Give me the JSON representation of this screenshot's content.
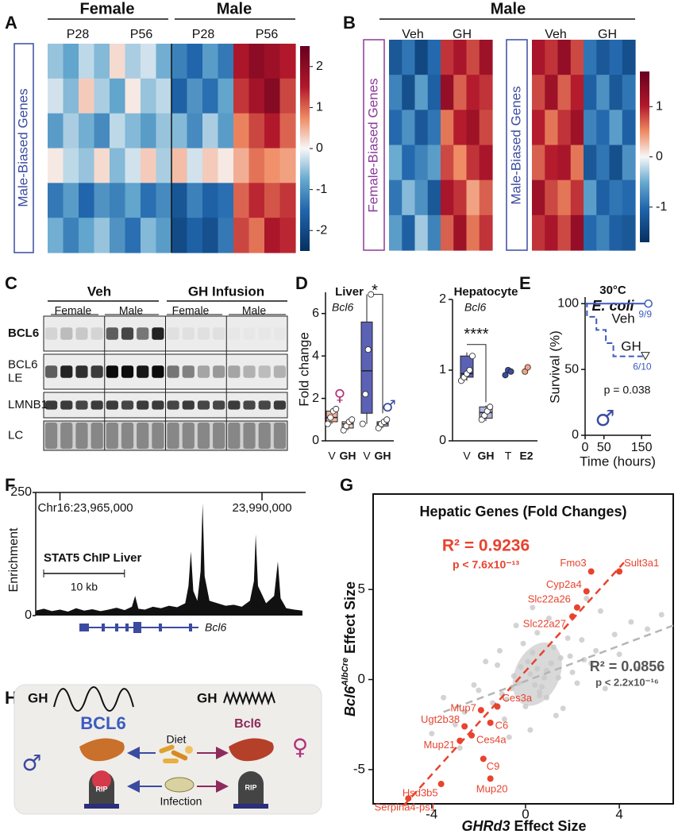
{
  "panels": {
    "A": {
      "label": "A",
      "groups": [
        "Female",
        "Male"
      ],
      "ages": [
        "P28",
        "P56",
        "P28",
        "P56"
      ],
      "row_label": "Male-Biased Genes",
      "matrix": [
        [
          -0.5,
          -0.8,
          -0.3,
          -0.6,
          0.2,
          -0.4,
          -0.2,
          -0.7,
          -1.2,
          -1.5,
          -0.9,
          -1.3,
          1.6,
          2.0,
          1.8,
          1.5
        ],
        [
          -0.2,
          -0.6,
          0.3,
          -0.4,
          -0.8,
          0.1,
          -0.5,
          -0.3,
          -1.6,
          -1.0,
          -1.4,
          -0.8,
          1.3,
          1.7,
          2.1,
          1.2
        ],
        [
          -0.9,
          -0.4,
          -0.7,
          -1.1,
          -0.3,
          -0.6,
          -0.9,
          -0.5,
          -0.6,
          -1.1,
          -0.4,
          -0.9,
          0.8,
          1.2,
          1.5,
          1.0
        ],
        [
          0.1,
          -0.3,
          -0.5,
          0.2,
          -0.6,
          -0.2,
          0.3,
          -0.4,
          0.4,
          -0.2,
          0.3,
          0.1,
          0.5,
          0.9,
          0.7,
          0.6
        ],
        [
          -1.3,
          -0.9,
          -1.5,
          -1.0,
          -1.2,
          -0.8,
          -1.4,
          -1.1,
          -1.8,
          -1.2,
          -1.6,
          -1.4,
          1.0,
          1.4,
          1.1,
          1.3
        ],
        [
          -0.7,
          -1.2,
          -0.8,
          -0.5,
          -1.0,
          -1.4,
          -0.6,
          -0.9,
          -2.0,
          -1.6,
          -1.9,
          -1.3,
          1.2,
          0.9,
          1.6,
          1.4
        ]
      ],
      "clim": [
        -2.5,
        2.5
      ],
      "colorbar_ticks": [
        2,
        1,
        0,
        -1,
        -2
      ]
    },
    "B": {
      "label": "B",
      "group": "Male",
      "treatments": [
        "Veh",
        "GH",
        "Veh",
        "GH"
      ],
      "heatmaps": [
        {
          "row_label": "Female-Biased Genes",
          "matrix": [
            [
              -1.2,
              -0.9,
              -1.4,
              -1.0,
              0.9,
              1.1,
              0.8,
              1.2
            ],
            [
              -0.8,
              -1.3,
              -0.6,
              -1.1,
              1.3,
              0.7,
              1.0,
              0.9
            ],
            [
              -1.0,
              -0.7,
              -1.2,
              -0.9,
              0.6,
              1.0,
              1.2,
              0.8
            ],
            [
              -0.5,
              -1.0,
              -0.8,
              -0.6,
              0.8,
              0.5,
              0.9,
              1.1
            ],
            [
              -0.9,
              -0.4,
              -0.7,
              -1.2,
              1.1,
              0.9,
              0.4,
              0.7
            ],
            [
              -0.6,
              -1.1,
              -0.3,
              -0.8,
              0.7,
              1.2,
              0.6,
              0.9
            ]
          ]
        },
        {
          "row_label": "Male-Biased Genes",
          "matrix": [
            [
              1.1,
              0.9,
              1.3,
              0.8,
              -0.9,
              -1.2,
              -1.0,
              -1.3
            ],
            [
              0.8,
              1.2,
              0.7,
              1.0,
              -1.1,
              -0.7,
              -1.2,
              -0.9
            ],
            [
              1.0,
              0.6,
              0.9,
              1.2,
              -0.8,
              -1.0,
              -0.6,
              -1.1
            ],
            [
              0.7,
              1.0,
              1.1,
              0.6,
              -1.2,
              -0.9,
              -1.3,
              -0.7
            ],
            [
              1.2,
              0.8,
              0.6,
              0.9,
              -0.6,
              -1.1,
              -0.9,
              -1.0
            ],
            [
              0.9,
              1.1,
              0.8,
              1.3,
              -1.0,
              -0.8,
              -1.1,
              -1.2
            ]
          ]
        }
      ],
      "clim": [
        -1.7,
        1.7
      ],
      "colorbar_ticks": [
        1,
        0,
        -1
      ]
    },
    "C": {
      "label": "C",
      "treatments": [
        "Veh",
        "GH Infusion"
      ],
      "sexes": [
        "Female",
        "Male",
        "Female",
        "Male"
      ],
      "blot_rows": [
        {
          "name_lines": [
            "BCL6"
          ],
          "bands": [
            0.1,
            0.2,
            0.15,
            0.1,
            0.6,
            0.7,
            0.5,
            0.85,
            0.05,
            0.05,
            0.05,
            0.05,
            0.02,
            0.02,
            0.02,
            0.02
          ]
        },
        {
          "name_lines": [
            "BCL6",
            "LE"
          ],
          "bands": [
            0.6,
            0.85,
            0.8,
            0.75,
            0.95,
            0.95,
            0.9,
            0.95,
            0.5,
            0.45,
            0.3,
            0.35,
            0.3,
            0.25,
            0.2,
            0.25
          ]
        },
        {
          "name_lines": [
            "LMNB1"
          ],
          "bands": [
            0.75,
            0.75,
            0.7,
            0.75,
            0.75,
            0.7,
            0.75,
            0.75,
            0.7,
            0.75,
            0.7,
            0.7,
            0.75,
            0.7,
            0.7,
            0.75
          ]
        },
        {
          "name_lines": [
            "LC"
          ],
          "bands": [
            0.35,
            0.35,
            0.35,
            0.35,
            0.35,
            0.35,
            0.35,
            0.35,
            0.35,
            0.35,
            0.35,
            0.35,
            0.35,
            0.35,
            0.35,
            0.35
          ]
        }
      ],
      "liver": {
        "title": "Liver",
        "gene": "Bcl6",
        "ylabel": "Fold change",
        "ylim": [
          0,
          7
        ],
        "yticks": [
          0,
          2,
          4,
          6
        ],
        "categories": [
          "V",
          "GH",
          "V",
          "GH"
        ],
        "groups": [
          {
            "color": "#f2b39b",
            "box": {
              "min": 0.8,
              "q1": 0.9,
              "median": 1.1,
              "q3": 1.4,
              "max": 1.5
            },
            "points": [
              0.8,
              1.1,
              1.4,
              1.5
            ]
          },
          {
            "color": "#f4cdbd",
            "box": {
              "min": 0.5,
              "q1": 0.6,
              "median": 0.8,
              "q3": 0.9,
              "max": 1.0
            },
            "points": [
              0.5,
              0.7,
              0.9,
              1.0
            ]
          },
          {
            "color": "#5b62b5",
            "box": {
              "min": 0.8,
              "q1": 1.3,
              "median": 3.3,
              "q3": 5.6,
              "max": 6.9
            },
            "points": [
              0.8,
              2.2,
              4.3,
              6.9
            ]
          },
          {
            "color": "#b0b4dd",
            "box": {
              "min": 0.6,
              "q1": 0.7,
              "median": 0.8,
              "q3": 0.9,
              "max": 1.0
            },
            "points": [
              0.6,
              0.8,
              0.9,
              1.0
            ]
          }
        ],
        "significance": "*",
        "symbols": [
          "♀",
          "♂"
        ]
      }
    },
    "D": {
      "label": "D",
      "title": "Hepatocyte",
      "gene": "Bcl6",
      "ylim": [
        0,
        2
      ],
      "yticks": [
        0,
        1,
        2
      ],
      "categories": [
        "V",
        "GH",
        "T",
        "E2"
      ],
      "groups": [
        {
          "color": "#5b62b5",
          "box": {
            "min": 0.85,
            "q1": 0.9,
            "median": 0.95,
            "q3": 1.2,
            "max": 1.25
          },
          "points": [
            0.85,
            0.9,
            0.95,
            1.0,
            1.2
          ]
        },
        {
          "color": "#b0b4dd",
          "box": {
            "min": 0.28,
            "q1": 0.32,
            "median": 0.4,
            "q3": 0.48,
            "max": 0.5
          },
          "points": [
            0.3,
            0.36,
            0.42,
            0.48
          ]
        },
        {
          "color": "#3b4ba0",
          "points": [
            0.93,
            1.0,
            0.98
          ]
        },
        {
          "color": "#f2a487",
          "points": [
            0.98,
            1.04
          ]
        }
      ],
      "significance": "****"
    },
    "E": {
      "label": "E",
      "temperature": "30°C",
      "pathogen": "E. coli",
      "ylabel": "Survival (%)",
      "xlabel": "Time (hours)",
      "xlim": [
        0,
        175
      ],
      "xticks": [
        0,
        50,
        150
      ],
      "ylim": [
        0,
        105
      ],
      "yticks": [
        0,
        50,
        100
      ],
      "series": [
        {
          "name": "Veh",
          "color": "#3b5bbf",
          "x": [
            0,
            168
          ],
          "y": [
            100,
            100
          ],
          "end_label": "9/9"
        },
        {
          "name": "GH",
          "color": "#3b5bbf",
          "x": [
            0,
            5,
            5,
            30,
            30,
            55,
            55,
            75,
            75,
            160
          ],
          "y": [
            100,
            100,
            90,
            90,
            80,
            80,
            70,
            70,
            60,
            60
          ],
          "end_label": "6/10"
        }
      ],
      "p_value": "p = 0.038",
      "symbol": "♂"
    },
    "F": {
      "label": "F",
      "ylabel": "Enrichment",
      "ylim": [
        0,
        250
      ],
      "yticks": [
        0,
        250
      ],
      "xlim": [
        23962000,
        23995400
      ],
      "coordinates": [
        {
          "value": 23965000,
          "label": "Chr16:23,965,000"
        },
        {
          "value": 23990000,
          "label": "23,990,000"
        }
      ],
      "track": "STAT5 ChIP Liver",
      "scale_bar": {
        "label": "10 kb",
        "length": 10000
      },
      "gene": "Bcl6",
      "signal_x": [
        23962000,
        23963000,
        23964000,
        23965000,
        23966000,
        23967000,
        23968000,
        23969000,
        23970000,
        23971000,
        23972000,
        23973000,
        23973900,
        23974300,
        23974700,
        23975500,
        23976500,
        23977500,
        23978500,
        23979500,
        23980500,
        23980900,
        23981200,
        23981500,
        23982000,
        23982400,
        23982650,
        23982900,
        23983500,
        23984500,
        23985500,
        23986500,
        23987500,
        23988500,
        23989000,
        23989220,
        23989500,
        23990500,
        23991500,
        23991960,
        23992300,
        23993000,
        23994000,
        23995000
      ],
      "signal": [
        10,
        14,
        9,
        12,
        8,
        15,
        10,
        13,
        9,
        12,
        16,
        11,
        18,
        40,
        14,
        12,
        18,
        15,
        20,
        17,
        25,
        60,
        130,
        50,
        30,
        90,
        228,
        80,
        30,
        25,
        20,
        22,
        18,
        30,
        70,
        165,
        60,
        25,
        40,
        110,
        35,
        15,
        12,
        10
      ]
    },
    "G": {
      "label": "G",
      "title": "Hepatic Genes (Fold Changes)",
      "xlabel_gene": "GHRd3",
      "xlabel_rest": "Effect Size",
      "ylabel_gene": "Bcl6",
      "ylabel_superscript": "AlbCre",
      "ylabel_rest": "Effect Size",
      "xlim": [
        -6.5,
        6.3
      ],
      "ylim": [
        -6.9,
        10.3
      ],
      "xticks": [
        -4,
        0,
        4
      ],
      "yticks": [
        -5,
        0,
        5
      ],
      "fits": [
        {
          "r2": "R² = 0.9236",
          "p": "p < 7.6x10⁻¹³",
          "color": "#e8432e",
          "x": [
            -5.2,
            4.2
          ],
          "y": [
            -7,
            6.5
          ]
        },
        {
          "r2": "R² = 0.0856",
          "p": "p < 2.2x10⁻¹⁶",
          "color": "#b5b5b5",
          "x": [
            -3.5,
            6.3
          ],
          "y": [
            -1.8,
            3.0
          ]
        }
      ],
      "genes": [
        {
          "name": "Fmo3",
          "x": 2.8,
          "y": 6.0
        },
        {
          "name": "Sult3a1",
          "x": 4.0,
          "y": 6.0
        },
        {
          "name": "Cyp2a4",
          "x": 2.6,
          "y": 4.9
        },
        {
          "name": "Slc22a26",
          "x": 2.2,
          "y": 4.0
        },
        {
          "name": "Slc22a27",
          "x": 2.0,
          "y": 3.5
        },
        {
          "name": "Ces3a",
          "x": -1.2,
          "y": -1.5
        },
        {
          "name": "Mup7",
          "x": -1.9,
          "y": -1.7
        },
        {
          "name": "C6",
          "x": -1.5,
          "y": -2.4
        },
        {
          "name": "Ugt2b38",
          "x": -2.6,
          "y": -2.6
        },
        {
          "name": "Ces4a",
          "x": -2.3,
          "y": -3.1
        },
        {
          "name": "Mup21",
          "x": -2.8,
          "y": -3.4
        },
        {
          "name": "C9",
          "x": -1.8,
          "y": -4.4
        },
        {
          "name": "Hsd3b5",
          "x": -3.6,
          "y": -5.8
        },
        {
          "name": "Mup20",
          "x": -1.5,
          "y": -5.5
        },
        {
          "name": "Serpina4-ps1",
          "x": -5.0,
          "y": -6.6
        }
      ],
      "background": {
        "x": [
          0.2,
          -0.3,
          0.5,
          0.8,
          -0.6,
          1.1,
          0.1,
          -1.0,
          0.4,
          0.9,
          -0.2,
          1.5,
          0.7,
          -0.8,
          0.3,
          2.0,
          -1.4,
          0.6,
          1.2,
          -0.5,
          2.5,
          -2.0,
          0.0,
          1.8,
          -1.2,
          3.0,
          0.9,
          -0.1,
          2.2,
          -2.6,
          3.8,
          1.4,
          -3.0,
          4.5,
          0.5,
          -1.7,
          2.8,
          -0.9,
          5.2,
          1.0,
          -4.0,
          3.4,
          0.2,
          -2.2,
          1.6,
          4.0,
          -0.4,
          2.4,
          -3.5,
          5.8,
          0.6,
          1.9,
          -1.1,
          3.2,
          -0.7,
          2.6,
          0.3,
          -2.8,
          4.8,
          1.3
        ],
        "y": [
          0.3,
          -0.2,
          0.6,
          0.1,
          -0.5,
          0.9,
          1.0,
          -0.8,
          -0.3,
          0.5,
          0.7,
          1.2,
          -0.4,
          -1.1,
          1.5,
          0.4,
          -1.3,
          -0.9,
          1.8,
          0.2,
          1.1,
          -0.6,
          -1.5,
          2.3,
          0.8,
          1.6,
          -1.0,
          2.0,
          -0.2,
          -1.8,
          2.5,
          0.1,
          -2.5,
          3.2,
          2.6,
          1.0,
          0.9,
          -2.2,
          2.8,
          3.4,
          -3.0,
          -0.5,
          -2.8,
          -0.3,
          -1.6,
          1.4,
          3.0,
          2.2,
          -1.0,
          3.6,
          -0.7,
          1.3,
          1.6,
          3.8,
          -3.2,
          4.5,
          4.0,
          -3.8,
          0.6,
          -2.0
        ]
      }
    },
    "H": {
      "label": "H",
      "left_gh": "GH",
      "right_gh": "GH",
      "left_gene": "BCL6",
      "right_gene": "Bcl6",
      "diet": "Diet",
      "infection": "Infection",
      "male": "♂",
      "female": "♀",
      "rip": [
        "RIP",
        "RIP"
      ]
    }
  }
}
